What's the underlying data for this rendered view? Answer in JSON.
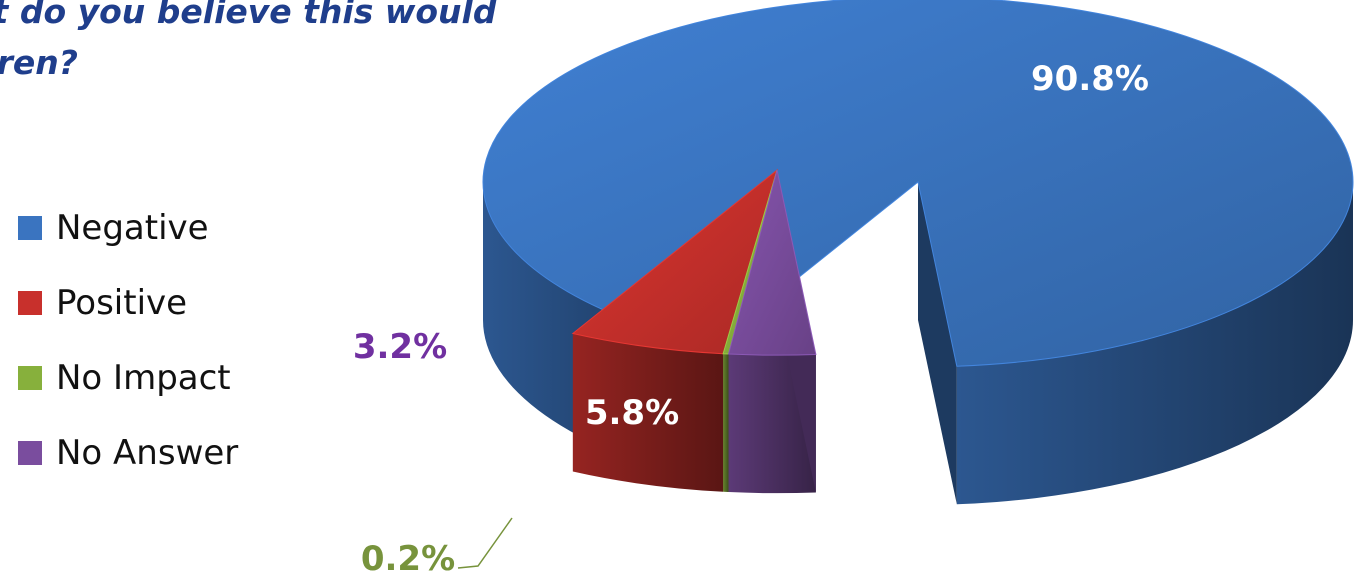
{
  "chart_data": {
    "type": "pie",
    "title": "…ct do you believe this would\n…dren?",
    "categories": [
      "Negative",
      "Positive",
      "No Impact",
      "No Answer"
    ],
    "values": [
      90.8,
      5.8,
      0.2,
      3.2
    ],
    "data_labels": [
      "90.8%",
      "5.8%",
      "0.2%",
      "3.2%"
    ],
    "colors": [
      "#3a74c0",
      "#c8302c",
      "#87b03c",
      "#7a4d9e"
    ],
    "label_colors": [
      "#ffffff",
      "#ffffff",
      "#77933c",
      "#7030a0"
    ],
    "legend": {
      "position": "left",
      "entries": [
        "Negative",
        "Positive",
        "No Impact",
        "No Answer"
      ]
    },
    "style": "3d-exploded"
  }
}
